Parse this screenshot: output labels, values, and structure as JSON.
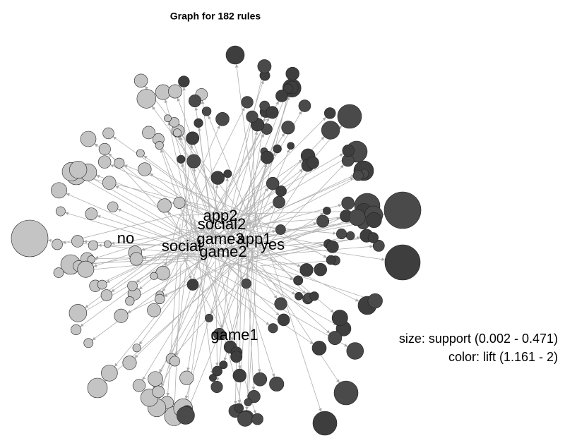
{
  "title": "Graph for 182 rules",
  "item_labels": [
    "app2",
    "social2",
    "game3",
    "app1",
    "social",
    "yes",
    "game2",
    "no",
    "game1"
  ],
  "legend": {
    "size": "size: support (0.002 - 0.471)",
    "color": "color: lift (1.161 - 2)"
  }
}
